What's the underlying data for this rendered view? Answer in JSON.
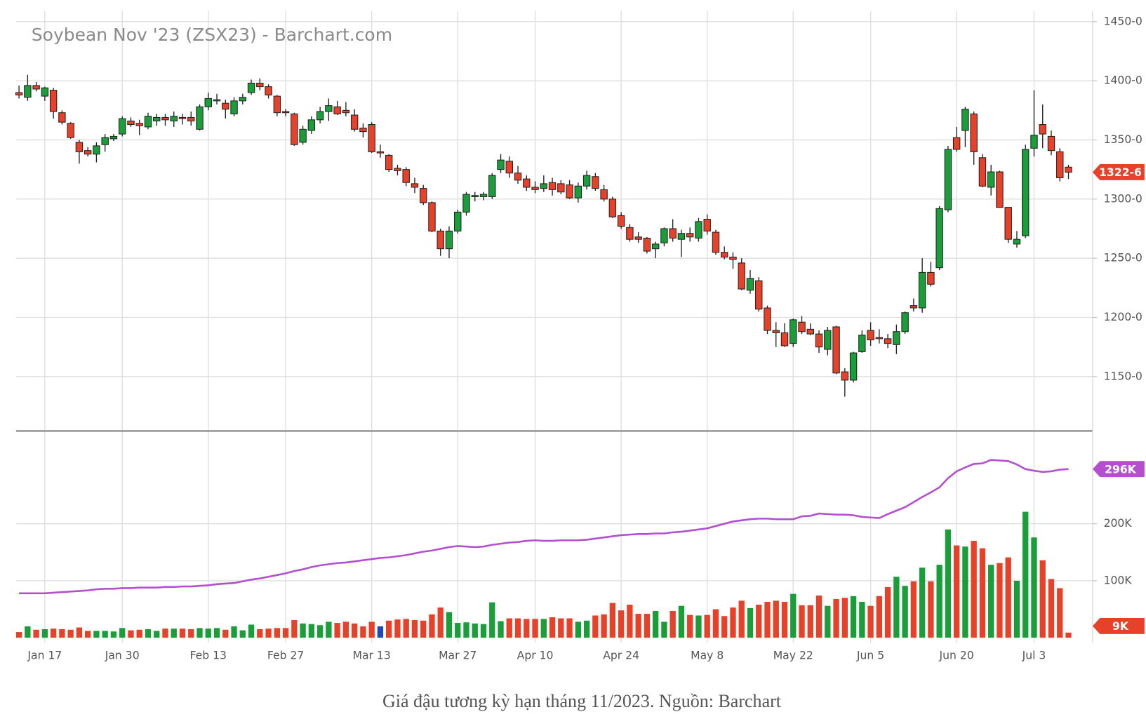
{
  "chart_data": [
    {
      "type": "candlestick",
      "title": "Soybean Nov '23 (ZSX23) - Barchart.com",
      "open": [
        1390,
        1386,
        1396,
        1387,
        1392,
        1373,
        1364,
        1348,
        1341,
        1338,
        1346,
        1351,
        1355,
        1366,
        1364,
        1361,
        1366,
        1369,
        1366,
        1369,
        1369,
        1359,
        1378,
        1383,
        1381,
        1372,
        1383,
        1390,
        1398,
        1395,
        1387,
        1374,
        1372,
        1348,
        1358,
        1367,
        1374,
        1378,
        1375,
        1371,
        1360,
        1363,
        1340,
        1337,
        1326,
        1325,
        1313,
        1309,
        1297,
        1273,
        1258,
        1273,
        1289,
        1302,
        1302,
        1302,
        1325,
        1332,
        1322,
        1317,
        1310,
        1309,
        1314,
        1313,
        1312,
        1301,
        1311,
        1319,
        1308,
        1300,
        1286,
        1276,
        1268,
        1267,
        1258,
        1263,
        1275,
        1266,
        1271,
        1267,
        1283,
        1272,
        1255,
        1251,
        1246,
        1223,
        1231,
        1208,
        1189,
        1187,
        1178,
        1196,
        1190,
        1186,
        1173,
        1192,
        1154,
        1147,
        1171,
        1189,
        1183,
        1182,
        1177,
        1188,
        1210,
        1208,
        1238,
        1242,
        1291,
        1352,
        1358,
        1372,
        1335,
        1310,
        1323,
        1293,
        1262,
        1269,
        1343,
        1363,
        1353,
        1340,
        1327
      ],
      "high": [
        1396,
        1405,
        1399,
        1395,
        1394,
        1375,
        1365,
        1350,
        1344,
        1348,
        1355,
        1355,
        1370,
        1369,
        1367,
        1373,
        1372,
        1372,
        1374,
        1372,
        1374,
        1380,
        1390,
        1389,
        1384,
        1386,
        1389,
        1401,
        1402,
        1397,
        1388,
        1376,
        1373,
        1362,
        1370,
        1378,
        1385,
        1383,
        1382,
        1376,
        1364,
        1365,
        1346,
        1338,
        1329,
        1327,
        1318,
        1312,
        1298,
        1275,
        1277,
        1291,
        1306,
        1306,
        1306,
        1322,
        1338,
        1336,
        1328,
        1320,
        1315,
        1320,
        1318,
        1316,
        1316,
        1314,
        1324,
        1322,
        1312,
        1302,
        1289,
        1279,
        1272,
        1268,
        1264,
        1276,
        1283,
        1274,
        1276,
        1284,
        1287,
        1274,
        1260,
        1255,
        1250,
        1240,
        1234,
        1210,
        1196,
        1195,
        1199,
        1201,
        1195,
        1189,
        1192,
        1193,
        1157,
        1171,
        1189,
        1196,
        1190,
        1186,
        1194,
        1205,
        1216,
        1250,
        1247,
        1294,
        1345,
        1361,
        1378,
        1374,
        1338,
        1329,
        1324,
        1293,
        1273,
        1346,
        1392,
        1380,
        1358,
        1343,
        1329
      ],
      "low": [
        1385,
        1383,
        1391,
        1383,
        1368,
        1363,
        1351,
        1330,
        1336,
        1331,
        1340,
        1349,
        1353,
        1361,
        1354,
        1359,
        1362,
        1362,
        1361,
        1363,
        1362,
        1358,
        1375,
        1380,
        1368,
        1370,
        1380,
        1388,
        1392,
        1385,
        1370,
        1370,
        1345,
        1346,
        1355,
        1364,
        1366,
        1371,
        1370,
        1357,
        1352,
        1339,
        1335,
        1323,
        1320,
        1311,
        1305,
        1295,
        1272,
        1252,
        1250,
        1271,
        1286,
        1298,
        1299,
        1300,
        1322,
        1318,
        1313,
        1307,
        1305,
        1306,
        1303,
        1304,
        1300,
        1297,
        1308,
        1307,
        1298,
        1284,
        1275,
        1264,
        1263,
        1254,
        1250,
        1260,
        1264,
        1251,
        1264,
        1264,
        1270,
        1253,
        1249,
        1241,
        1223,
        1220,
        1205,
        1186,
        1175,
        1175,
        1175,
        1186,
        1185,
        1170,
        1168,
        1152,
        1133,
        1145,
        1170,
        1176,
        1178,
        1174,
        1169,
        1186,
        1205,
        1204,
        1226,
        1240,
        1289,
        1340,
        1344,
        1329,
        1310,
        1303,
        1293,
        1263,
        1259,
        1267,
        1336,
        1343,
        1337,
        1315,
        1317
      ],
      "close": [
        1388,
        1396,
        1393,
        1394,
        1374,
        1365,
        1352,
        1340,
        1338,
        1345,
        1352,
        1353,
        1368,
        1363,
        1362,
        1370,
        1369,
        1367,
        1370,
        1368,
        1366,
        1378,
        1385,
        1384,
        1376,
        1383,
        1386,
        1398,
        1395,
        1388,
        1373,
        1373,
        1346,
        1359,
        1367,
        1374,
        1379,
        1372,
        1373,
        1359,
        1357,
        1340,
        1339,
        1325,
        1324,
        1314,
        1310,
        1297,
        1273,
        1258,
        1273,
        1289,
        1304,
        1303,
        1304,
        1320,
        1333,
        1322,
        1316,
        1310,
        1308,
        1313,
        1308,
        1306,
        1301,
        1311,
        1320,
        1309,
        1300,
        1285,
        1277,
        1266,
        1266,
        1256,
        1262,
        1275,
        1267,
        1271,
        1268,
        1281,
        1273,
        1255,
        1251,
        1249,
        1224,
        1233,
        1207,
        1189,
        1187,
        1176,
        1198,
        1188,
        1186,
        1175,
        1189,
        1153,
        1147,
        1170,
        1185,
        1181,
        1182,
        1178,
        1188,
        1204,
        1208,
        1238,
        1228,
        1292,
        1342,
        1342,
        1376,
        1340,
        1311,
        1323,
        1293,
        1266,
        1266,
        1342,
        1354,
        1355,
        1341,
        1318,
        1322.75
      ],
      "last_label": "1322-6",
      "up_color": "#1a9e3a",
      "down_color": "#e8412a",
      "ylim": [
        1104,
        1459
      ],
      "yticks": [
        {
          "value": 1150,
          "label": "1150-0"
        },
        {
          "value": 1200,
          "label": "1200-0"
        },
        {
          "value": 1250,
          "label": "1250-0"
        },
        {
          "value": 1300,
          "label": "1300-0"
        },
        {
          "value": 1350,
          "label": "1350-0"
        },
        {
          "value": 1400,
          "label": "1400-0"
        },
        {
          "value": 1450,
          "label": "1450-0"
        }
      ],
      "grid": true
    },
    {
      "type": "bar",
      "categories": [
        null,
        null,
        null,
        "Jan 17",
        null,
        null,
        null,
        null,
        null,
        null,
        null,
        null,
        "Jan 30",
        null,
        null,
        null,
        null,
        null,
        null,
        null,
        null,
        null,
        "Feb 13",
        null,
        null,
        null,
        null,
        null,
        null,
        null,
        null,
        "Feb 27",
        null,
        null,
        null,
        null,
        null,
        null,
        null,
        null,
        null,
        "Mar 13",
        null,
        null,
        null,
        null,
        null,
        null,
        null,
        null,
        null,
        "Mar 27",
        null,
        null,
        null,
        null,
        null,
        null,
        null,
        null,
        "Apr 10",
        null,
        null,
        null,
        null,
        null,
        null,
        null,
        null,
        null,
        "Apr 24",
        null,
        null,
        null,
        null,
        null,
        null,
        null,
        null,
        null,
        "May 8",
        null,
        null,
        null,
        null,
        null,
        null,
        null,
        null,
        null,
        "May 22",
        null,
        null,
        null,
        null,
        null,
        null,
        null,
        null,
        "Jun 5",
        null,
        null,
        null,
        null,
        null,
        null,
        null,
        null,
        null,
        "Jun 20",
        null,
        null,
        null,
        null,
        null,
        null,
        null,
        null,
        "Jul 3",
        null,
        null,
        null,
        null
      ],
      "series": [
        {
          "type": "bar",
          "last_label": "9K",
          "values": [
            10000,
            20000,
            14000,
            15000,
            16000,
            15000,
            14000,
            18000,
            12000,
            12000,
            12000,
            11000,
            17000,
            13000,
            14000,
            15000,
            12000,
            16000,
            16000,
            16000,
            15000,
            17000,
            16000,
            17000,
            14000,
            20000,
            13000,
            23000,
            15000,
            16000,
            17000,
            17000,
            31000,
            25000,
            24000,
            22000,
            28000,
            26000,
            28000,
            25000,
            20000,
            28000,
            20000,
            30000,
            32000,
            33000,
            31000,
            30000,
            41000,
            53000,
            45000,
            26000,
            27000,
            25000,
            24000,
            62000,
            29000,
            34000,
            34000,
            33000,
            33000,
            33000,
            36000,
            34000,
            34000,
            28000,
            30000,
            39000,
            41000,
            61000,
            48000,
            58000,
            42000,
            42000,
            47000,
            28000,
            47000,
            56000,
            40000,
            39000,
            40000,
            50000,
            38000,
            53000,
            65000,
            52000,
            58000,
            63000,
            65000,
            63000,
            77000,
            57000,
            57000,
            74000,
            56000,
            68000,
            70000,
            73000,
            63000,
            56000,
            73000,
            89000,
            107000,
            91000,
            99000,
            123000,
            99000,
            128000,
            190000,
            162000,
            160000,
            170000,
            157000,
            128000,
            131000,
            141000,
            100000,
            221000,
            176000,
            136000,
            103000,
            87000,
            9000
          ],
          "colors": [
            "#e8412a",
            "#1a9e3a",
            "#e8412a",
            "#1a9e3a",
            "#e8412a",
            "#e8412a",
            "#e8412a",
            "#e8412a",
            "#e8412a",
            "#1a9e3a",
            "#1a9e3a",
            "#1a9e3a",
            "#1a9e3a",
            "#e8412a",
            "#e8412a",
            "#1a9e3a",
            "#1a9e3a",
            "#e8412a",
            "#1a9e3a",
            "#e8412a",
            "#e8412a",
            "#1a9e3a",
            "#1a9e3a",
            "#1a9e3a",
            "#e8412a",
            "#1a9e3a",
            "#1a9e3a",
            "#1a9e3a",
            "#e8412a",
            "#e8412a",
            "#e8412a",
            "#e8412a",
            "#e8412a",
            "#1a9e3a",
            "#1a9e3a",
            "#1a9e3a",
            "#1a9e3a",
            "#e8412a",
            "#e8412a",
            "#e8412a",
            "#e8412a",
            "#e8412a",
            "#1f49b6",
            "#e8412a",
            "#e8412a",
            "#e8412a",
            "#e8412a",
            "#e8412a",
            "#e8412a",
            "#e8412a",
            "#1a9e3a",
            "#1a9e3a",
            "#1a9e3a",
            "#1a9e3a",
            "#1a9e3a",
            "#1a9e3a",
            "#1a9e3a",
            "#e8412a",
            "#e8412a",
            "#e8412a",
            "#e8412a",
            "#1a9e3a",
            "#e8412a",
            "#e8412a",
            "#e8412a",
            "#1a9e3a",
            "#1a9e3a",
            "#e8412a",
            "#e8412a",
            "#e8412a",
            "#e8412a",
            "#e8412a",
            "#e8412a",
            "#e8412a",
            "#1a9e3a",
            "#1a9e3a",
            "#e8412a",
            "#1a9e3a",
            "#e8412a",
            "#1a9e3a",
            "#e8412a",
            "#e8412a",
            "#e8412a",
            "#e8412a",
            "#e8412a",
            "#1a9e3a",
            "#e8412a",
            "#e8412a",
            "#e8412a",
            "#e8412a",
            "#1a9e3a",
            "#e8412a",
            "#e8412a",
            "#e8412a",
            "#1a9e3a",
            "#e8412a",
            "#e8412a",
            "#1a9e3a",
            "#1a9e3a",
            "#e8412a",
            "#e8412a",
            "#e8412a",
            "#1a9e3a",
            "#1a9e3a",
            "#e8412a",
            "#1a9e3a",
            "#e8412a",
            "#1a9e3a",
            "#1a9e3a",
            "#e8412a",
            "#1a9e3a",
            "#e8412a",
            "#e8412a",
            "#1a9e3a",
            "#e8412a",
            "#e8412a",
            "#1a9e3a",
            "#1a9e3a",
            "#1a9e3a",
            "#e8412a",
            "#e8412a",
            "#e8412a",
            "#e8412a"
          ]
        },
        {
          "type": "line",
          "color": "#b44fd0",
          "last_label": "296K",
          "values": [
            78000,
            78000,
            78000,
            78000,
            79000,
            80000,
            81000,
            82000,
            83000,
            85000,
            86000,
            86000,
            87000,
            87000,
            88000,
            88000,
            88000,
            89000,
            89000,
            90000,
            90000,
            91000,
            92000,
            94000,
            95000,
            96000,
            99000,
            102000,
            104000,
            107000,
            110000,
            113000,
            117000,
            120000,
            124000,
            127000,
            129000,
            131000,
            132000,
            134000,
            136000,
            138000,
            140000,
            141000,
            143000,
            145000,
            148000,
            151000,
            153000,
            156000,
            159000,
            161000,
            160000,
            159000,
            160000,
            163000,
            165000,
            167000,
            168000,
            170000,
            171000,
            170000,
            170000,
            171000,
            171000,
            171000,
            172000,
            174000,
            176000,
            178000,
            180000,
            181000,
            182000,
            182000,
            183000,
            183000,
            185000,
            186000,
            188000,
            190000,
            192000,
            196000,
            200000,
            204000,
            206000,
            208000,
            209000,
            209000,
            208000,
            208000,
            208000,
            213000,
            214000,
            218000,
            217000,
            216000,
            216000,
            215000,
            212000,
            211000,
            210000,
            217000,
            223000,
            229000,
            238000,
            247000,
            255000,
            264000,
            280000,
            292000,
            299000,
            305000,
            306000,
            312000,
            311000,
            310000,
            304000,
            296000,
            293000,
            291000,
            292000,
            295000,
            296000
          ]
        }
      ],
      "ylim": [
        0,
        350000
      ],
      "yticks": [
        {
          "value": 100000,
          "label": "100K"
        },
        {
          "value": 200000,
          "label": "200K"
        }
      ],
      "grid": true
    }
  ],
  "caption": "Giá đậu tương kỳ hạn tháng 11/2023. Nguồn: Barchart"
}
